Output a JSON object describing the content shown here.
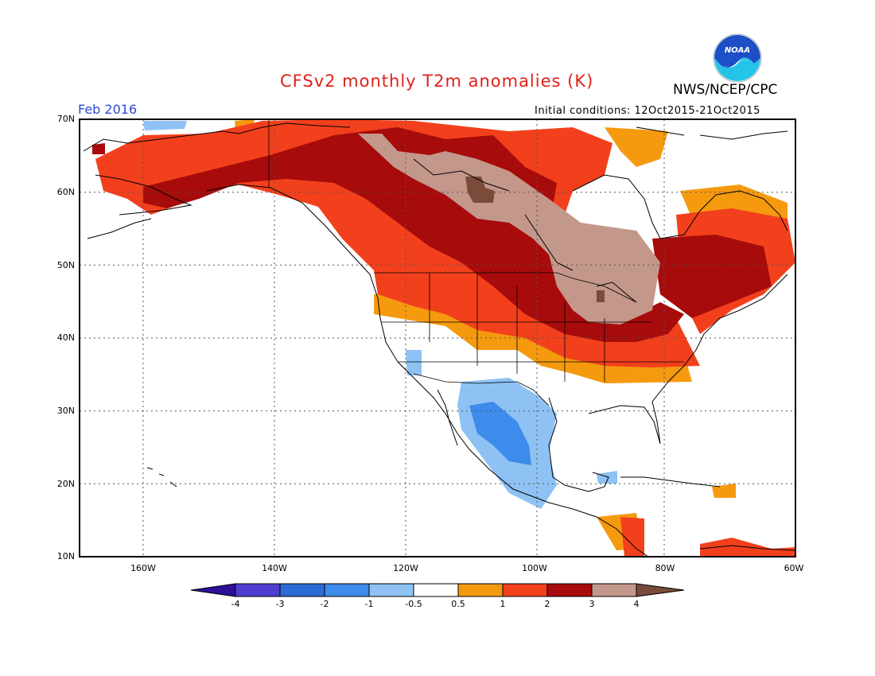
{
  "header": {
    "title": "CFSv2 monthly T2m anomalies (K)",
    "agency": "NWS/NCEP/CPC",
    "month": "Feb 2016",
    "initial_conditions": "Initial conditions: 12Oct2015-21Oct2015",
    "logo_text": "NOAA"
  },
  "axes": {
    "lat_labels": [
      "70N",
      "60N",
      "50N",
      "40N",
      "30N",
      "20N",
      "10N"
    ],
    "lon_labels": [
      "160W",
      "140W",
      "120W",
      "100W",
      "80W",
      "60W"
    ]
  },
  "colorbar": {
    "ticks": [
      "-4",
      "-3",
      "-2",
      "-1",
      "-0.5",
      "0.5",
      "1",
      "2",
      "3",
      "4"
    ],
    "colors": [
      "#2f0f9a",
      "#4f3dd0",
      "#2a6bd6",
      "#3d8bea",
      "#8ec2f4",
      "#ffffff",
      "#f59a0e",
      "#f2401c",
      "#a70b0b",
      "#c4978b",
      "#7a4b3a"
    ]
  },
  "colors": {
    "title": "#e0201a",
    "month": "#2a4bd7"
  }
}
